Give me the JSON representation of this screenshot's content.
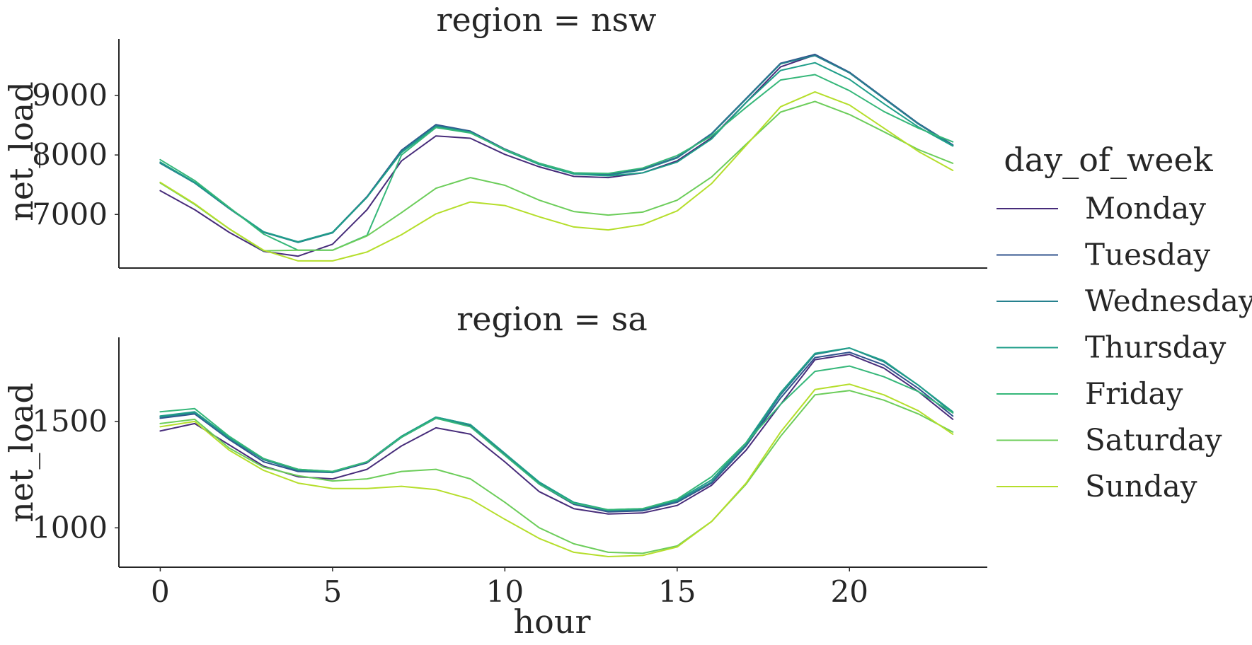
{
  "chart_data": {
    "type": "line",
    "grid": false,
    "legend": {
      "title": "day_of_week",
      "placement": "right"
    },
    "x": [
      0,
      1,
      2,
      3,
      4,
      5,
      6,
      7,
      8,
      9,
      10,
      11,
      12,
      13,
      14,
      15,
      16,
      17,
      18,
      19,
      20,
      21,
      22,
      23
    ],
    "xlabel": "hour",
    "xlim": [
      -1.2,
      24
    ],
    "xticks": [
      0,
      5,
      10,
      15,
      20
    ],
    "series_styles": [
      {
        "name": "Monday",
        "color": "#472c7a"
      },
      {
        "name": "Tuesday",
        "color": "#31538d"
      },
      {
        "name": "Wednesday",
        "color": "#26818e"
      },
      {
        "name": "Thursday",
        "color": "#1f9e89"
      },
      {
        "name": "Friday",
        "color": "#35b779"
      },
      {
        "name": "Saturday",
        "color": "#6ccd5a"
      },
      {
        "name": "Sunday",
        "color": "#b5de2b"
      }
    ],
    "panels": [
      {
        "title": "region = nsw",
        "ylabel": "net_load",
        "ylim": [
          6100,
          9950
        ],
        "yticks": [
          7000,
          8000,
          9000
        ],
        "series": [
          {
            "name": "Monday",
            "values": [
              7400,
              7080,
              6700,
              6380,
              6300,
              6500,
              7080,
              7900,
              8320,
              8280,
              8010,
              7800,
              7640,
              7620,
              7700,
              7900,
              8290,
              8880,
              9480,
              9680,
              9380,
              8950,
              8520,
              8160
            ]
          },
          {
            "name": "Tuesday",
            "values": [
              7870,
              7530,
              7100,
              6700,
              6540,
              6700,
              7300,
              8080,
              8510,
              8400,
              8100,
              7860,
              7700,
              7670,
              7760,
              7960,
              8360,
              8950,
              9540,
              9690,
              9390,
              8960,
              8530,
              8170
            ]
          },
          {
            "name": "Wednesday",
            "values": [
              7860,
              7530,
              7100,
              6700,
              6530,
              6690,
              7290,
              8060,
              8490,
              8390,
              8090,
              7850,
              7690,
              7660,
              7750,
              7950,
              8350,
              8940,
              9530,
              9670,
              9380,
              8950,
              8520,
              8160
            ]
          },
          {
            "name": "Thursday",
            "values": [
              7880,
              7540,
              7110,
              6710,
              6540,
              6700,
              7290,
              8040,
              8470,
              8380,
              8080,
              7840,
              7680,
              7650,
              7700,
              7880,
              8270,
              8880,
              9420,
              9550,
              9270,
              8860,
              8470,
              8150
            ]
          },
          {
            "name": "Friday",
            "values": [
              7920,
              7570,
              7120,
              6670,
              6400,
              6400,
              6650,
              8000,
              8460,
              8370,
              8090,
              7860,
              7700,
              7690,
              7780,
              7990,
              8320,
              8800,
              9260,
              9350,
              9080,
              8730,
              8450,
              8220
            ]
          },
          {
            "name": "Saturday",
            "values": [
              7530,
              7170,
              6760,
              6390,
              6400,
              6400,
              6640,
              7030,
              7440,
              7620,
              7490,
              7240,
              7050,
              6990,
              7040,
              7240,
              7630,
              8180,
              8720,
              8900,
              8680,
              8390,
              8090,
              7860
            ]
          },
          {
            "name": "Sunday",
            "values": [
              7540,
              7180,
              6760,
              6400,
              6220,
              6220,
              6370,
              6660,
              7010,
              7210,
              7150,
              6960,
              6790,
              6740,
              6830,
              7060,
              7520,
              8160,
              8810,
              9060,
              8840,
              8450,
              8060,
              7740
            ]
          }
        ]
      },
      {
        "title": "region = sa",
        "ylabel": "net_load",
        "ylim": [
          815,
          1895
        ],
        "yticks": [
          1000,
          1500
        ],
        "series": [
          {
            "name": "Monday",
            "values": [
              1455,
              1490,
              1390,
              1290,
              1240,
              1230,
              1275,
              1385,
              1470,
              1440,
              1310,
              1170,
              1090,
              1065,
              1070,
              1105,
              1200,
              1365,
              1580,
              1790,
              1815,
              1750,
              1640,
              1510
            ]
          },
          {
            "name": "Tuesday",
            "values": [
              1515,
              1535,
              1415,
              1310,
              1265,
              1260,
              1305,
              1425,
              1515,
              1480,
              1345,
              1205,
              1110,
              1075,
              1080,
              1120,
              1210,
              1385,
              1610,
              1800,
              1825,
              1765,
              1655,
              1525
            ]
          },
          {
            "name": "Wednesday",
            "values": [
              1520,
              1540,
              1420,
              1320,
              1270,
              1260,
              1310,
              1430,
              1520,
              1485,
              1350,
              1210,
              1115,
              1080,
              1085,
              1125,
              1215,
              1390,
              1625,
              1815,
              1845,
              1780,
              1670,
              1540
            ]
          },
          {
            "name": "Thursday",
            "values": [
              1525,
              1545,
              1425,
              1325,
              1275,
              1265,
              1310,
              1430,
              1520,
              1485,
              1350,
              1215,
              1120,
              1085,
              1090,
              1130,
              1225,
              1400,
              1635,
              1820,
              1845,
              1785,
              1670,
              1545
            ]
          },
          {
            "name": "Friday",
            "values": [
              1545,
              1560,
              1430,
              1325,
              1275,
              1265,
              1310,
              1425,
              1515,
              1475,
              1340,
              1205,
              1115,
              1085,
              1090,
              1135,
              1240,
              1400,
              1580,
              1735,
              1760,
              1710,
              1640,
              1540
            ]
          },
          {
            "name": "Saturday",
            "values": [
              1490,
              1510,
              1375,
              1285,
              1245,
              1220,
              1230,
              1265,
              1275,
              1230,
              1120,
              1000,
              925,
              885,
              880,
              915,
              1030,
              1205,
              1430,
              1625,
              1645,
              1600,
              1535,
              1450
            ]
          },
          {
            "name": "Sunday",
            "values": [
              1475,
              1500,
              1365,
              1270,
              1210,
              1185,
              1185,
              1195,
              1180,
              1135,
              1040,
              950,
              885,
              865,
              870,
              910,
              1030,
              1210,
              1450,
              1650,
              1675,
              1625,
              1550,
              1440
            ]
          }
        ]
      }
    ]
  }
}
